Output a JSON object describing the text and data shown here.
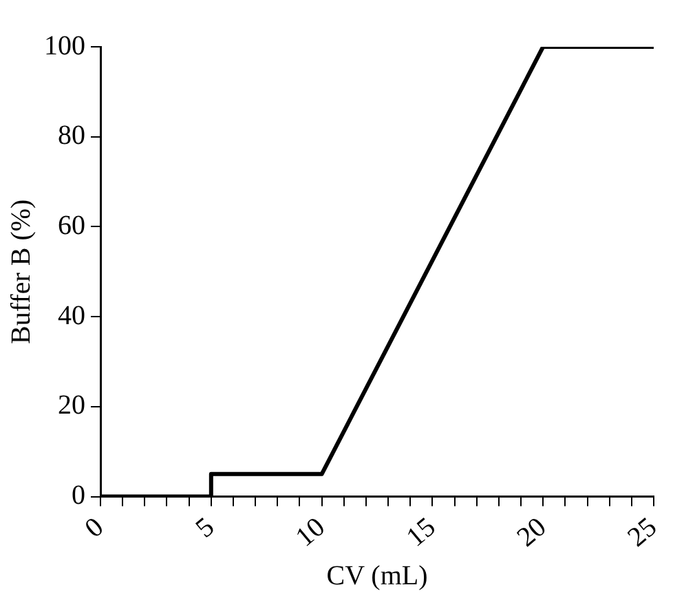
{
  "chart_data": {
    "type": "line",
    "xlabel": "CV (mL)",
    "ylabel": "Buffer B (%)",
    "x": [
      0,
      5,
      5,
      10,
      20,
      25
    ],
    "series": [
      {
        "color": "#000000",
        "values": [
          0,
          0,
          5,
          5,
          100,
          100
        ]
      }
    ],
    "xlim": [
      0,
      25
    ],
    "xticks": [
      0,
      {
        "value": 1,
        "label": null
      },
      {
        "value": 2,
        "label": null
      },
      {
        "value": 3,
        "label": null
      },
      {
        "value": 4,
        "label": null
      },
      5,
      {
        "value": 6,
        "label": null
      },
      {
        "value": 7,
        "label": null
      },
      {
        "value": 8,
        "label": null
      },
      {
        "value": 9,
        "label": null
      },
      10,
      {
        "value": 11,
        "label": null
      },
      {
        "value": 12,
        "label": null
      },
      {
        "value": 13,
        "label": null
      },
      {
        "value": 14,
        "label": null
      },
      15,
      {
        "value": 16,
        "label": null
      },
      {
        "value": 17,
        "label": null
      },
      {
        "value": 18,
        "label": null
      },
      {
        "value": 19,
        "label": null
      },
      20,
      {
        "value": 21,
        "label": null
      },
      {
        "value": 22,
        "label": null
      },
      {
        "value": 23,
        "label": null
      },
      {
        "value": 24,
        "label": null
      },
      25
    ],
    "ylim": [
      0,
      100
    ],
    "yticks": [
      0,
      20,
      40,
      60,
      80,
      100
    ],
    "grid": false,
    "legend": false,
    "marker": "none",
    "line_style": "solid"
  }
}
